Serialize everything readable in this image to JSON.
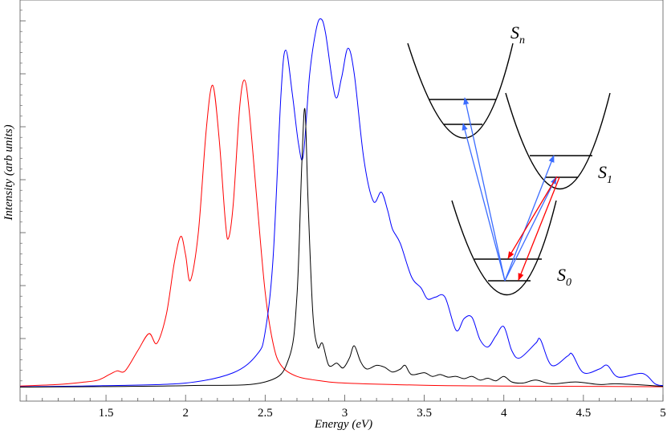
{
  "chart_data": {
    "type": "line",
    "title": "",
    "xlabel": "Energy (eV)",
    "ylabel": "Intensity (arb units)",
    "xlim": [
      0.96,
      5.0
    ],
    "ylim": [
      0,
      1.025
    ],
    "xticks": [
      "1.5",
      "2",
      "2.5",
      "3",
      "3.5",
      "4",
      "4.5",
      "5"
    ],
    "y_tick_labels_shown": false,
    "grid": false,
    "legend": "none",
    "series": [
      {
        "color": "#ff0000",
        "x": [
          0.96,
          1.2,
          1.35,
          1.45,
          1.52,
          1.57,
          1.62,
          1.7,
          1.77,
          1.82,
          1.88,
          1.93,
          1.97,
          2.0,
          2.03,
          2.08,
          2.13,
          2.17,
          2.21,
          2.25,
          2.27,
          2.3,
          2.34,
          2.37,
          2.4,
          2.45,
          2.5,
          2.55,
          2.6,
          2.7,
          2.85,
          3.0,
          3.5,
          4.0,
          4.5,
          5.0
        ],
        "y": [
          0.004,
          0.008,
          0.014,
          0.02,
          0.035,
          0.045,
          0.045,
          0.1,
          0.146,
          0.12,
          0.2,
          0.34,
          0.41,
          0.36,
          0.29,
          0.42,
          0.7,
          0.82,
          0.68,
          0.45,
          0.405,
          0.5,
          0.76,
          0.834,
          0.75,
          0.5,
          0.26,
          0.12,
          0.06,
          0.03,
          0.018,
          0.012,
          0.006,
          0.004,
          0.003,
          0.002
        ]
      },
      {
        "color": "#0000ff",
        "x": [
          0.96,
          1.5,
          2.0,
          2.3,
          2.45,
          2.5,
          2.55,
          2.6,
          2.63,
          2.67,
          2.71,
          2.74,
          2.78,
          2.82,
          2.85,
          2.88,
          2.94,
          2.98,
          3.02,
          3.06,
          3.12,
          3.18,
          3.23,
          3.27,
          3.3,
          3.35,
          3.42,
          3.48,
          3.52,
          3.57,
          3.63,
          3.7,
          3.75,
          3.8,
          3.85,
          3.9,
          3.95,
          4.0,
          4.05,
          4.1,
          4.2,
          4.23,
          4.3,
          4.4,
          4.43,
          4.5,
          4.6,
          4.65,
          4.72,
          4.87,
          4.95,
          5.0
        ],
        "y": [
          0.002,
          0.005,
          0.012,
          0.04,
          0.09,
          0.15,
          0.35,
          0.8,
          0.915,
          0.8,
          0.66,
          0.63,
          0.85,
          0.97,
          1.0,
          0.96,
          0.79,
          0.84,
          0.92,
          0.85,
          0.62,
          0.505,
          0.53,
          0.48,
          0.43,
          0.39,
          0.3,
          0.27,
          0.24,
          0.245,
          0.245,
          0.155,
          0.187,
          0.19,
          0.13,
          0.11,
          0.14,
          0.165,
          0.1,
          0.08,
          0.12,
          0.13,
          0.06,
          0.085,
          0.09,
          0.04,
          0.05,
          0.06,
          0.028,
          0.038,
          0.01,
          0.005
        ]
      },
      {
        "color": "#000000",
        "x": [
          0.96,
          2.0,
          2.5,
          2.65,
          2.7,
          2.73,
          2.75,
          2.77,
          2.8,
          2.83,
          2.86,
          2.9,
          2.95,
          2.99,
          3.03,
          3.06,
          3.1,
          3.14,
          3.2,
          3.25,
          3.3,
          3.35,
          3.38,
          3.42,
          3.5,
          3.55,
          3.6,
          3.65,
          3.7,
          3.75,
          3.8,
          3.85,
          3.9,
          3.95,
          4.0,
          4.05,
          4.12,
          4.2,
          4.3,
          4.45,
          4.6,
          4.7,
          4.9,
          5.0
        ],
        "y": [
          0.001,
          0.005,
          0.015,
          0.08,
          0.25,
          0.6,
          0.755,
          0.5,
          0.2,
          0.11,
          0.12,
          0.06,
          0.066,
          0.053,
          0.08,
          0.113,
          0.07,
          0.05,
          0.06,
          0.055,
          0.042,
          0.05,
          0.06,
          0.035,
          0.04,
          0.03,
          0.035,
          0.028,
          0.03,
          0.024,
          0.03,
          0.02,
          0.025,
          0.018,
          0.03,
          0.015,
          0.012,
          0.02,
          0.01,
          0.015,
          0.008,
          0.01,
          0.006,
          0.003
        ]
      }
    ]
  },
  "inset": {
    "states": [
      {
        "label": "S",
        "sub": "n"
      },
      {
        "label": "S",
        "sub": "1"
      },
      {
        "label": "S",
        "sub": "0"
      }
    ],
    "absorption_arrow_color": "#3b6cff",
    "emission_arrow_color": "#ff0000"
  }
}
